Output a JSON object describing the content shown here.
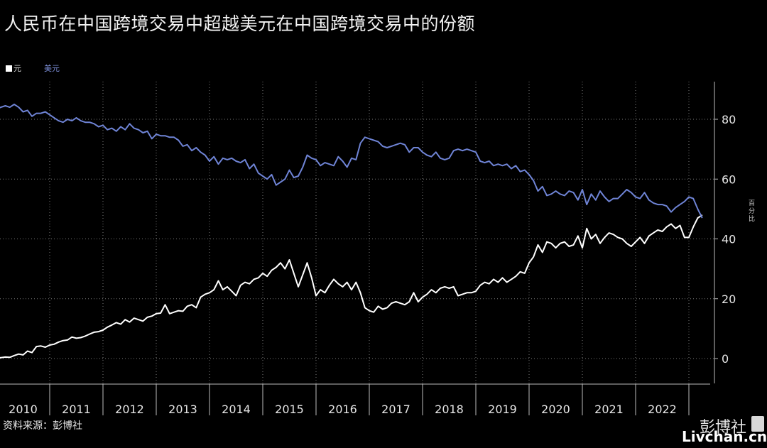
{
  "header": {
    "title": "人民币在中国跨境交易中超越美元在中国跨境交易中的份额"
  },
  "legend": {
    "rmb_label": "元",
    "usd_label": "美元"
  },
  "unit_label": "百分比",
  "footer": {
    "source": "资料来源：彭博社",
    "brand": "彭博社",
    "watermark": "Livchan.cn"
  },
  "colors": {
    "background": "#000000",
    "rmb_line": "#ffffff",
    "usd_line": "#6f84d6",
    "grid": "#7a7a7a"
  },
  "chart_data": {
    "type": "line",
    "x_start": "2010-01",
    "x_end": "2023-03",
    "frequency": "monthly",
    "years": [
      "2010",
      "2011",
      "2012",
      "2013",
      "2014",
      "2015",
      "2016",
      "2017",
      "2018",
      "2019",
      "2020",
      "2021",
      "2022"
    ],
    "yticks": [
      0,
      20,
      40,
      60,
      80
    ],
    "ylim": [
      -8,
      92
    ],
    "grid": true,
    "series": [
      {
        "name": "元",
        "color": "#ffffff",
        "values": [
          0.2,
          0.3,
          0.5,
          0.4,
          1.0,
          1.5,
          1.2,
          2.5,
          2.0,
          4.0,
          4.2,
          3.8,
          4.5,
          4.8,
          5.5,
          6.0,
          6.2,
          7.2,
          6.8,
          7.0,
          7.5,
          8.2,
          8.8,
          9.0,
          9.5,
          10.5,
          11.2,
          12.0,
          11.5,
          13.0,
          12.2,
          13.5,
          13.0,
          12.5,
          13.8,
          14.2,
          15.0,
          15.2,
          18.0,
          15.0,
          15.5,
          16.0,
          15.8,
          17.5,
          18.0,
          17.0,
          20.5,
          21.5,
          22.0,
          23.0,
          26.0,
          23.0,
          24.0,
          22.5,
          21.0,
          24.5,
          25.5,
          25.0,
          26.5,
          27.0,
          28.5,
          27.5,
          29.5,
          30.5,
          32.0,
          30.0,
          33.0,
          28.5,
          24.0,
          28.0,
          32.0,
          27.0,
          21.0,
          23.0,
          22.0,
          24.5,
          26.5,
          25.0,
          24.0,
          25.5,
          23.0,
          25.5,
          22.0,
          17.0,
          16.0,
          15.5,
          17.5,
          16.5,
          17.0,
          18.5,
          19.0,
          18.5,
          18.0,
          19.0,
          22.0,
          19.0,
          20.5,
          21.5,
          23.0,
          22.0,
          23.5,
          24.0,
          23.5,
          24.0,
          21.0,
          21.5,
          22.0,
          22.0,
          22.5,
          24.5,
          25.5,
          25.0,
          26.5,
          25.5,
          27.0,
          25.5,
          26.5,
          27.5,
          29.0,
          28.5,
          32.0,
          34.0,
          38.0,
          35.5,
          39.0,
          38.5,
          37.0,
          38.5,
          39.0,
          37.5,
          38.0,
          41.0,
          37.0,
          43.5,
          40.0,
          41.5,
          38.5,
          40.5,
          42.0,
          41.5,
          40.5,
          40.0,
          38.5,
          37.5,
          39.0,
          40.5,
          38.5,
          41.0,
          42.0,
          43.0,
          42.5,
          44.0,
          45.0,
          43.5,
          44.5,
          40.5,
          40.5,
          44.0,
          47.0,
          48.0
        ]
      },
      {
        "name": "美元",
        "color": "#6f84d6",
        "values": [
          83.5,
          84.0,
          84.5,
          84.0,
          85.0,
          84.0,
          82.5,
          83.0,
          81.0,
          82.0,
          82.0,
          82.5,
          81.5,
          80.5,
          79.5,
          79.0,
          80.0,
          79.5,
          80.5,
          79.5,
          79.0,
          79.0,
          78.5,
          77.5,
          78.0,
          76.5,
          77.0,
          76.0,
          77.5,
          76.5,
          78.5,
          77.0,
          76.5,
          75.5,
          76.0,
          73.5,
          75.0,
          74.5,
          74.5,
          74.0,
          74.0,
          73.0,
          71.0,
          71.5,
          69.5,
          70.5,
          69.0,
          68.0,
          66.0,
          67.5,
          65.0,
          67.0,
          66.5,
          67.0,
          66.0,
          65.5,
          66.5,
          63.5,
          65.0,
          62.0,
          61.0,
          60.0,
          61.5,
          58.0,
          59.0,
          60.0,
          63.0,
          60.5,
          61.0,
          64.0,
          68.0,
          67.0,
          66.5,
          64.5,
          65.5,
          65.0,
          64.5,
          67.5,
          66.0,
          64.0,
          67.0,
          66.5,
          72.0,
          74.0,
          73.5,
          73.0,
          72.5,
          71.0,
          70.5,
          71.0,
          71.5,
          72.0,
          71.5,
          69.0,
          70.5,
          70.5,
          69.0,
          68.0,
          67.5,
          69.0,
          67.0,
          66.5,
          67.0,
          69.5,
          70.0,
          69.5,
          70.0,
          69.5,
          69.0,
          66.0,
          65.5,
          66.0,
          64.5,
          65.0,
          64.5,
          65.0,
          63.5,
          64.5,
          62.5,
          63.0,
          61.5,
          59.5,
          56.0,
          57.5,
          54.5,
          55.0,
          56.0,
          55.0,
          54.5,
          56.0,
          55.5,
          53.0,
          56.5,
          51.5,
          55.0,
          53.0,
          56.0,
          54.0,
          52.5,
          53.5,
          53.5,
          55.0,
          56.5,
          55.5,
          54.0,
          53.5,
          55.5,
          53.0,
          52.0,
          51.5,
          51.5,
          51.0,
          49.0,
          50.5,
          51.5,
          52.5,
          54.0,
          53.5,
          50.0,
          47.0
        ]
      }
    ]
  }
}
